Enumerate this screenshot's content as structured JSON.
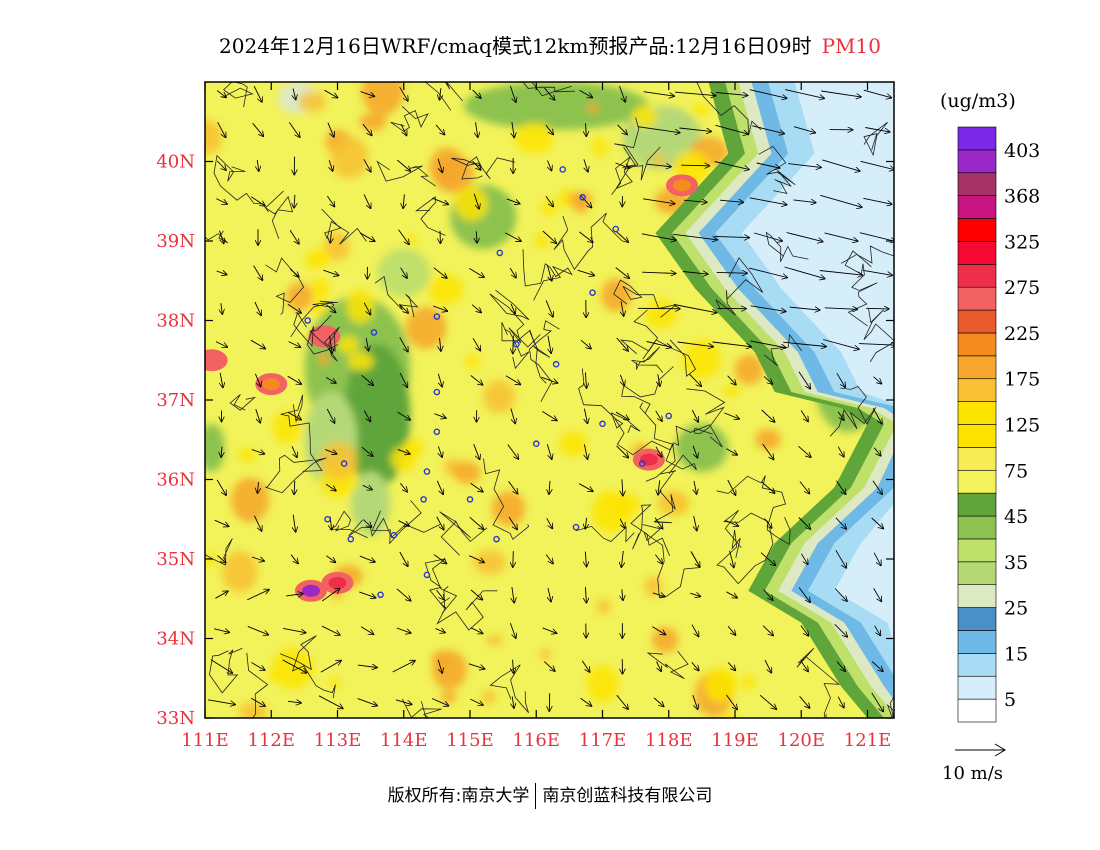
{
  "title": {
    "main": "2024年12月16日WRF/cmaq模式12km预报产品:12月16日09时",
    "pollutant": "PM10"
  },
  "axes": {
    "lon_labels": [
      "111E",
      "112E",
      "113E",
      "114E",
      "115E",
      "116E",
      "117E",
      "118E",
      "119E",
      "120E",
      "121E"
    ],
    "lat_labels": [
      "33N",
      "34N",
      "35N",
      "36N",
      "37N",
      "38N",
      "39N",
      "40N"
    ],
    "lon_range": [
      111,
      121.4
    ],
    "lat_range": [
      33,
      41
    ]
  },
  "colorbar": {
    "unit": "(ug/m3)",
    "labels": [
      "5",
      "15",
      "25",
      "35",
      "45",
      "75",
      "125",
      "175",
      "225",
      "275",
      "325",
      "368",
      "403"
    ],
    "colors": [
      "#ffffff",
      "#d5eefa",
      "#a8dbf4",
      "#6fb9e6",
      "#4a8fc6",
      "#dce9c2",
      "#b5d877",
      "#bfe06a",
      "#8dc250",
      "#5fa53a",
      "#f2f25a",
      "#f7ec55",
      "#fde400",
      "#fde400",
      "#f7c133",
      "#f6a62c",
      "#f58a1e",
      "#ea5a2a",
      "#f26262",
      "#ef2e4a",
      "#f70a31",
      "#ff0000",
      "#c81480",
      "#a63366",
      "#9a28c8",
      "#7a2ae6"
    ],
    "reference_vector": "10 m/s"
  },
  "footer": {
    "copyright": "版权所有:南京大学",
    "company": "南京创蓝科技有限公司"
  },
  "hotspots": [
    {
      "lon": 112.6,
      "lat": 34.6,
      "color": "#9a28c8"
    },
    {
      "lon": 117.7,
      "lat": 36.25,
      "color": "#ef2e4a"
    },
    {
      "lon": 112.8,
      "lat": 37.8,
      "color": "#f26262"
    },
    {
      "lon": 113.0,
      "lat": 34.7,
      "color": "#ef2e4a"
    },
    {
      "lon": 112.0,
      "lat": 37.2,
      "color": "#f58a1e"
    },
    {
      "lon": 118.2,
      "lat": 39.7,
      "color": "#f58a1e"
    },
    {
      "lon": 111.1,
      "lat": 37.5,
      "color": "#f26262"
    }
  ],
  "cities": [
    {
      "lon": 116.4,
      "lat": 39.9
    },
    {
      "lon": 116.7,
      "lat": 39.55
    },
    {
      "lon": 117.2,
      "lat": 39.15
    },
    {
      "lon": 115.45,
      "lat": 38.85
    },
    {
      "lon": 116.85,
      "lat": 38.35
    },
    {
      "lon": 114.5,
      "lat": 38.05
    },
    {
      "lon": 113.55,
      "lat": 37.85
    },
    {
      "lon": 112.55,
      "lat": 38.0
    },
    {
      "lon": 115.7,
      "lat": 37.7
    },
    {
      "lon": 116.3,
      "lat": 37.45
    },
    {
      "lon": 114.5,
      "lat": 37.1
    },
    {
      "lon": 114.5,
      "lat": 36.6
    },
    {
      "lon": 117.0,
      "lat": 36.7
    },
    {
      "lon": 118.0,
      "lat": 36.8
    },
    {
      "lon": 116.0,
      "lat": 36.45
    },
    {
      "lon": 113.1,
      "lat": 36.2
    },
    {
      "lon": 114.35,
      "lat": 36.1
    },
    {
      "lon": 114.3,
      "lat": 35.75
    },
    {
      "lon": 115.0,
      "lat": 35.75
    },
    {
      "lon": 112.85,
      "lat": 35.5
    },
    {
      "lon": 113.85,
      "lat": 35.3
    },
    {
      "lon": 113.2,
      "lat": 35.25
    },
    {
      "lon": 115.4,
      "lat": 35.25
    },
    {
      "lon": 116.6,
      "lat": 35.4
    },
    {
      "lon": 114.35,
      "lat": 34.8
    },
    {
      "lon": 113.65,
      "lat": 34.55
    },
    {
      "lon": 117.6,
      "lat": 36.2
    }
  ]
}
